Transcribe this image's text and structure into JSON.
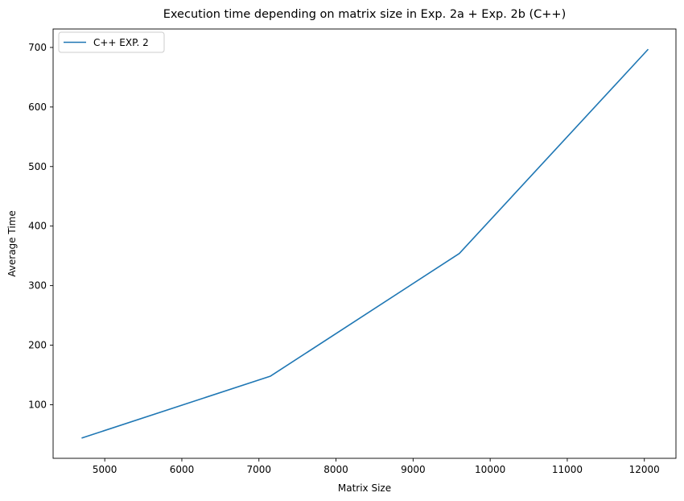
{
  "chart_data": {
    "type": "line",
    "title": "Execution time depending on matrix size in Exp. 2a + Exp. 2b (C++)",
    "xlabel": "Matrix Size",
    "ylabel": "Average Time",
    "xlim": [
      4330,
      12410
    ],
    "ylim": [
      10,
      731
    ],
    "xticks": [
      5000,
      6000,
      7000,
      8000,
      9000,
      10000,
      11000,
      12000
    ],
    "yticks": [
      100,
      200,
      300,
      400,
      500,
      600,
      700
    ],
    "grid": false,
    "legend_position": "upper-left",
    "series": [
      {
        "name": "C++ EXP. 2",
        "color": "#1f77b4",
        "x": [
          4700,
          7150,
          9600,
          12050
        ],
        "y": [
          44,
          148,
          354,
          697
        ]
      }
    ]
  }
}
